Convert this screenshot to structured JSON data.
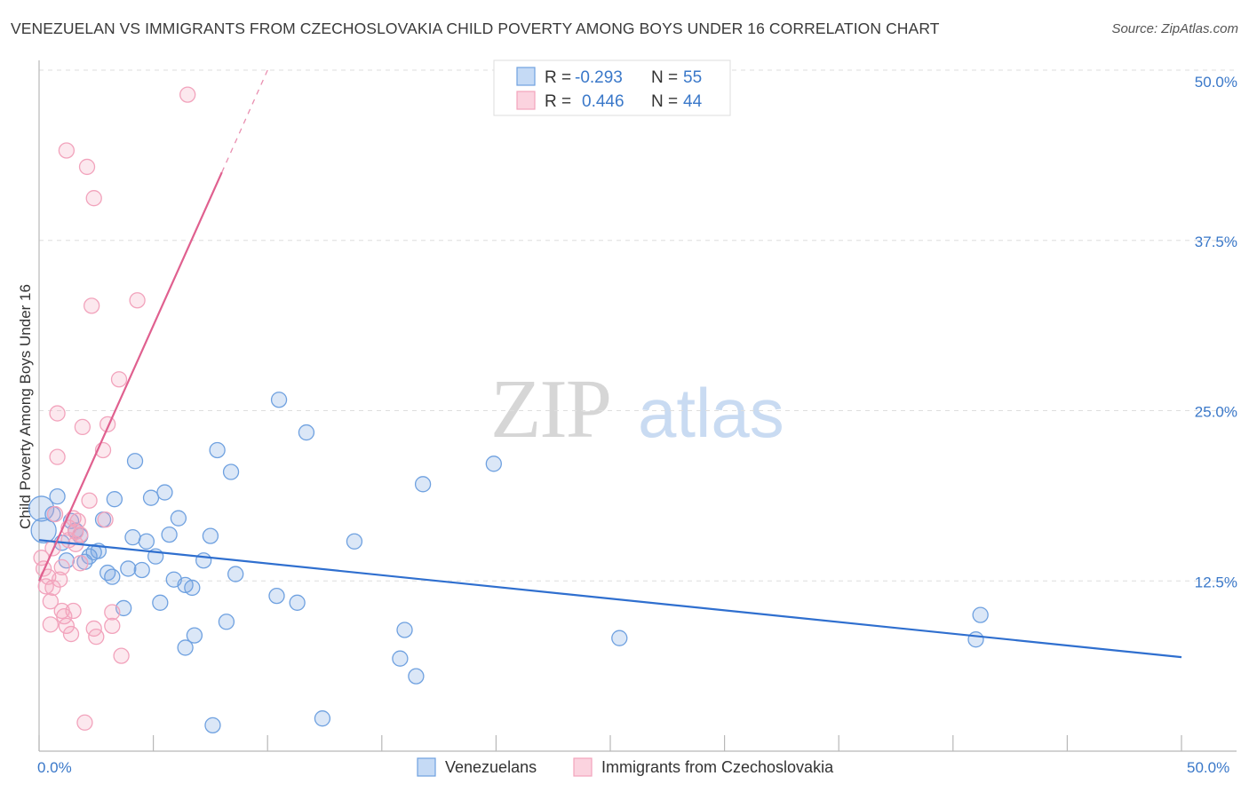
{
  "title": "VENEZUELAN VS IMMIGRANTS FROM CZECHOSLOVAKIA CHILD POVERTY AMONG BOYS UNDER 16 CORRELATION CHART",
  "source": "Source: ZipAtlas.com",
  "watermark": {
    "zip": "ZIP",
    "atlas": "atlas"
  },
  "chart_data": {
    "type": "scatter",
    "ylabel": "Child Poverty Among Boys Under 16",
    "xlim": [
      0,
      50
    ],
    "ylim": [
      0,
      50
    ],
    "x_tick_labels": [
      "0.0%",
      "50.0%"
    ],
    "y_ticks": [
      12.5,
      25.0,
      37.5,
      50.0
    ],
    "y_tick_labels": [
      "12.5%",
      "25.0%",
      "37.5%",
      "50.0%"
    ],
    "grid": true,
    "stats": [
      {
        "r_label": "R =",
        "r_value": "-0.293",
        "n_label": "N =",
        "n_value": "55"
      },
      {
        "r_label": "R =",
        "r_value": "0.446",
        "n_label": "N =",
        "n_value": "44"
      }
    ],
    "series": [
      {
        "name": "Venezuelans",
        "color": "#6fa1e0",
        "line_color": "#2f6fcf",
        "trend": {
          "x0": 0,
          "y0": 15.5,
          "x1": 50,
          "y1": 6.9
        },
        "points": [
          [
            0.1,
            17.8
          ],
          [
            0.2,
            16.2
          ],
          [
            0.6,
            17.4
          ],
          [
            0.8,
            18.7
          ],
          [
            1.0,
            15.3
          ],
          [
            1.2,
            14.0
          ],
          [
            1.4,
            16.9
          ],
          [
            1.6,
            16.2
          ],
          [
            1.8,
            15.8
          ],
          [
            2.0,
            13.9
          ],
          [
            2.2,
            14.3
          ],
          [
            2.4,
            14.6
          ],
          [
            2.6,
            14.7
          ],
          [
            2.8,
            17.0
          ],
          [
            3.0,
            13.1
          ],
          [
            3.2,
            12.8
          ],
          [
            3.3,
            18.5
          ],
          [
            3.7,
            10.5
          ],
          [
            3.9,
            13.4
          ],
          [
            4.1,
            15.7
          ],
          [
            4.2,
            21.3
          ],
          [
            4.5,
            13.3
          ],
          [
            4.7,
            15.4
          ],
          [
            4.9,
            18.6
          ],
          [
            5.1,
            14.3
          ],
          [
            5.3,
            10.9
          ],
          [
            5.5,
            19.0
          ],
          [
            5.7,
            15.9
          ],
          [
            5.9,
            12.6
          ],
          [
            6.1,
            17.1
          ],
          [
            6.4,
            12.2
          ],
          [
            6.7,
            12.0
          ],
          [
            6.8,
            8.5
          ],
          [
            7.2,
            14.0
          ],
          [
            7.5,
            15.8
          ],
          [
            7.8,
            22.1
          ],
          [
            8.2,
            9.5
          ],
          [
            8.4,
            20.5
          ],
          [
            8.6,
            13.0
          ],
          [
            10.4,
            11.4
          ],
          [
            10.5,
            25.8
          ],
          [
            11.3,
            10.9
          ],
          [
            11.7,
            23.4
          ],
          [
            12.4,
            2.4
          ],
          [
            13.8,
            15.4
          ],
          [
            15.8,
            6.8
          ],
          [
            16.0,
            8.9
          ],
          [
            16.5,
            5.5
          ],
          [
            16.8,
            19.6
          ],
          [
            19.9,
            21.1
          ],
          [
            25.4,
            8.3
          ],
          [
            41.2,
            10.0
          ],
          [
            41.0,
            8.2
          ],
          [
            7.6,
            1.9
          ],
          [
            6.4,
            7.6
          ]
        ]
      },
      {
        "name": "Immigrants from Czechoslovakia",
        "color": "#f2a3bc",
        "line_color": "#e0608f",
        "trend": {
          "x0": 0,
          "y0": 12.5,
          "x1": 8,
          "y1": 42.5
        },
        "trend_dash": {
          "x0": 8,
          "y0": 42.5,
          "x1": 10,
          "y1": 50.0
        },
        "points": [
          [
            0.1,
            14.2
          ],
          [
            0.2,
            13.4
          ],
          [
            0.3,
            12.1
          ],
          [
            0.4,
            12.8
          ],
          [
            0.5,
            11.0
          ],
          [
            0.5,
            9.3
          ],
          [
            0.6,
            14.9
          ],
          [
            0.6,
            12.0
          ],
          [
            0.7,
            17.4
          ],
          [
            0.8,
            21.6
          ],
          [
            0.8,
            24.8
          ],
          [
            0.9,
            12.6
          ],
          [
            1.0,
            10.3
          ],
          [
            1.0,
            13.5
          ],
          [
            1.1,
            9.9
          ],
          [
            1.2,
            44.1
          ],
          [
            1.2,
            9.2
          ],
          [
            1.3,
            16.4
          ],
          [
            1.3,
            15.5
          ],
          [
            1.4,
            8.6
          ],
          [
            1.5,
            17.1
          ],
          [
            1.5,
            10.3
          ],
          [
            1.6,
            15.2
          ],
          [
            1.7,
            16.9
          ],
          [
            1.8,
            13.8
          ],
          [
            1.8,
            15.9
          ],
          [
            1.9,
            23.8
          ],
          [
            2.0,
            2.1
          ],
          [
            2.1,
            42.9
          ],
          [
            2.2,
            18.4
          ],
          [
            2.3,
            32.7
          ],
          [
            2.4,
            40.6
          ],
          [
            2.4,
            9.0
          ],
          [
            2.5,
            8.4
          ],
          [
            2.8,
            22.1
          ],
          [
            2.9,
            17.0
          ],
          [
            3.0,
            24.0
          ],
          [
            3.2,
            9.2
          ],
          [
            3.2,
            10.2
          ],
          [
            3.5,
            27.3
          ],
          [
            3.6,
            7.0
          ],
          [
            4.3,
            33.1
          ],
          [
            6.5,
            48.2
          ],
          [
            1.6,
            16.1
          ]
        ]
      }
    ]
  }
}
